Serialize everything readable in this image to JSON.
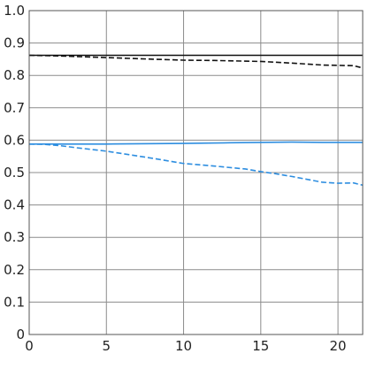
{
  "chart_data": {
    "type": "line",
    "title": "",
    "xlabel": "",
    "ylabel": "",
    "xlim": [
      0,
      21.6
    ],
    "ylim": [
      0,
      1.0
    ],
    "x_ticks": [
      0,
      5,
      10,
      15,
      20
    ],
    "y_ticks": [
      0,
      0.1,
      0.2,
      0.3,
      0.4,
      0.5,
      0.6,
      0.7,
      0.8,
      0.9,
      1.0
    ],
    "x_tick_labels": [
      "0",
      "5",
      "10",
      "15",
      "20"
    ],
    "y_tick_labels": [
      "0",
      "0.1",
      "0.2",
      "0.3",
      "0.4",
      "0.5",
      "0.6",
      "0.7",
      "0.8",
      "0.9",
      "1.0"
    ],
    "grid": true,
    "legend": "none",
    "series": [
      {
        "color": "#111111",
        "dash": "solid",
        "x": [
          0,
          5,
          10,
          15,
          20,
          21.6
        ],
        "y": [
          0.862,
          0.862,
          0.862,
          0.862,
          0.862,
          0.862
        ]
      },
      {
        "color": "#111111",
        "dash": "dashed",
        "x": [
          0,
          2,
          5,
          8,
          10,
          12,
          15,
          17,
          19,
          20,
          21,
          21.6
        ],
        "y": [
          0.862,
          0.86,
          0.855,
          0.85,
          0.847,
          0.846,
          0.843,
          0.838,
          0.832,
          0.831,
          0.83,
          0.823
        ]
      },
      {
        "color": "#2e8ee0",
        "dash": "solid",
        "x": [
          0,
          5,
          10,
          13,
          15,
          17,
          19,
          20,
          21.6
        ],
        "y": [
          0.588,
          0.588,
          0.59,
          0.592,
          0.593,
          0.594,
          0.593,
          0.593,
          0.593
        ]
      },
      {
        "color": "#2e8ee0",
        "dash": "dashed",
        "x": [
          0,
          1,
          2,
          3,
          5,
          8,
          10,
          12,
          14,
          15,
          16,
          17,
          18,
          19,
          20,
          21,
          21.6
        ],
        "y": [
          0.588,
          0.587,
          0.583,
          0.577,
          0.566,
          0.544,
          0.528,
          0.52,
          0.511,
          0.503,
          0.496,
          0.488,
          0.479,
          0.47,
          0.467,
          0.468,
          0.461
        ]
      }
    ]
  }
}
